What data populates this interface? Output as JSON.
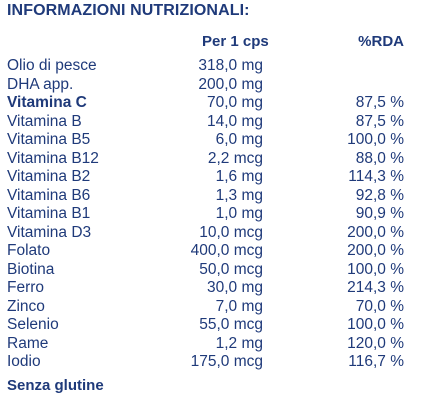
{
  "title": "INFORMAZIONI NUTRIZIONALI:",
  "headers": {
    "amount": "Per 1 cps",
    "rda": "%RDA"
  },
  "rows": [
    {
      "name": "Olio di pesce",
      "amount": "318,0 mg",
      "rda": "",
      "bold": false
    },
    {
      "name": "DHA app.",
      "amount": "200,0 mg",
      "rda": "",
      "bold": false
    },
    {
      "name": "Vitamina C",
      "amount": "70,0 mg",
      "rda": "87,5 %",
      "bold": true
    },
    {
      "name": "Vitamina B",
      "amount": "14,0 mg",
      "rda": "87,5 %",
      "bold": false
    },
    {
      "name": "Vitamina B5",
      "amount": "6,0 mg",
      "rda": "100,0 %",
      "bold": false
    },
    {
      "name": "Vitamina B12",
      "amount": "2,2 mcg",
      "rda": "88,0 %",
      "bold": false
    },
    {
      "name": "Vitamina B2",
      "amount": "1,6 mg",
      "rda": "114,3 %",
      "bold": false
    },
    {
      "name": "Vitamina B6",
      "amount": "1,3 mg",
      "rda": "92,8 %",
      "bold": false
    },
    {
      "name": "Vitamina B1",
      "amount": "1,0 mg",
      "rda": "90,9 %",
      "bold": false
    },
    {
      "name": "Vitamina D3",
      "amount": "10,0 mcg",
      "rda": "200,0 %",
      "bold": false
    },
    {
      "name": "Folato",
      "amount": "400,0 mcg",
      "rda": "200,0 %",
      "bold": false
    },
    {
      "name": "Biotina",
      "amount": "50,0 mcg",
      "rda": "100,0 %",
      "bold": false
    },
    {
      "name": "Ferro",
      "amount": "30,0 mg",
      "rda": "214,3 %",
      "bold": false
    },
    {
      "name": "Zinco",
      "amount": "7,0 mg",
      "rda": "70,0 %",
      "bold": false
    },
    {
      "name": "Selenio",
      "amount": "55,0 mcg",
      "rda": "100,0 %",
      "bold": false
    },
    {
      "name": "Rame",
      "amount": "1,2 mg",
      "rda": "120,0 %",
      "bold": false
    },
    {
      "name": "Iodio",
      "amount": "175,0 mcg",
      "rda": "116,7 %",
      "bold": false
    }
  ],
  "footer": "Senza glutine",
  "colors": {
    "text": "#1f3a7a",
    "background": "#ffffff"
  }
}
